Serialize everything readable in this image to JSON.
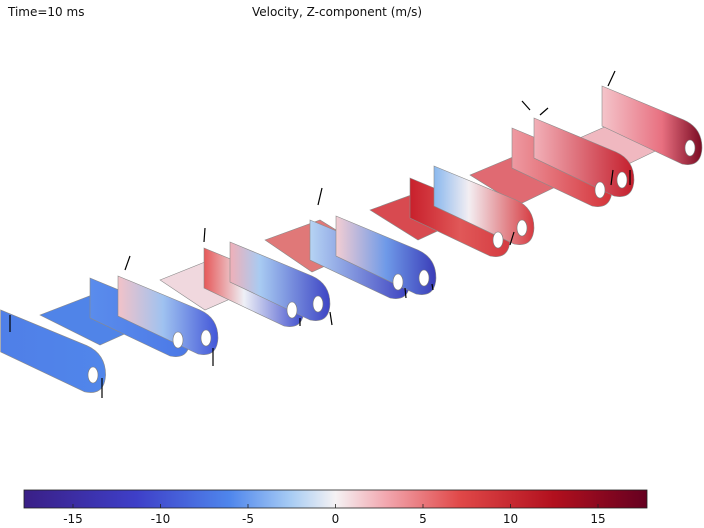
{
  "header": {
    "time": "Time=10 ms",
    "title": "Velocity, Z-component (m/s)"
  },
  "colorbar": {
    "lim": [
      -17.8,
      17.8
    ],
    "ticks": [
      -15,
      -10,
      -5,
      0,
      5,
      10,
      15
    ]
  }
}
